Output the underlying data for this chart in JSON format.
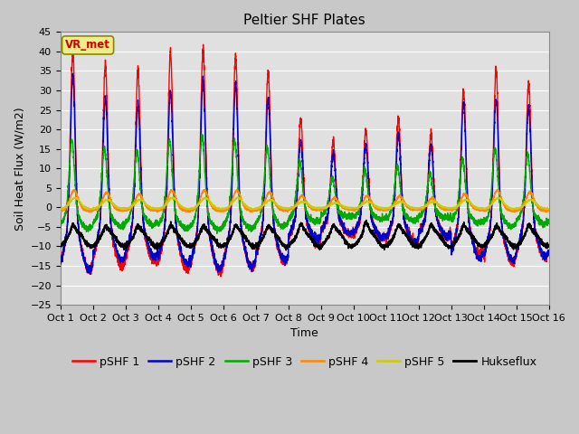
{
  "title": "Peltier SHF Plates",
  "xlabel": "Time",
  "ylabel": "Soil Heat Flux (W/m2)",
  "ylim": [
    -25,
    45
  ],
  "xlim": [
    0,
    15
  ],
  "xtick_labels": [
    "Oct 1",
    "Oct 2",
    "Oct 3",
    "Oct 4",
    "Oct 5",
    "Oct 6",
    "Oct 7",
    "Oct 8",
    "Oct 9",
    "Oct 10",
    "Oct 11",
    "Oct 12",
    "Oct 13",
    "Oct 14",
    "Oct 15",
    "Oct 16"
  ],
  "ytick_values": [
    -25,
    -20,
    -15,
    -10,
    -5,
    0,
    5,
    10,
    15,
    20,
    25,
    30,
    35,
    40,
    45
  ],
  "fig_facecolor": "#c8c8c8",
  "plot_bg_color": "#e0e0e0",
  "grid_color": "#ffffff",
  "legend_entries": [
    "pSHF 1",
    "pSHF 2",
    "pSHF 3",
    "pSHF 4",
    "pSHF 5",
    "Hukseflux"
  ],
  "line_colors": [
    "#ff0000",
    "#0000cc",
    "#00aa00",
    "#ff8800",
    "#cccc00",
    "#000000"
  ],
  "line_widths": [
    1.0,
    1.0,
    1.0,
    1.0,
    1.0,
    1.2
  ],
  "line_styles": [
    "-",
    "-",
    "-",
    "-",
    "-",
    "-"
  ],
  "vr_met_label": "VR_met",
  "vr_met_color": "#cc0000",
  "vr_met_bg": "#eeee88",
  "title_fontsize": 11,
  "label_fontsize": 9,
  "tick_fontsize": 8,
  "legend_fontsize": 9
}
